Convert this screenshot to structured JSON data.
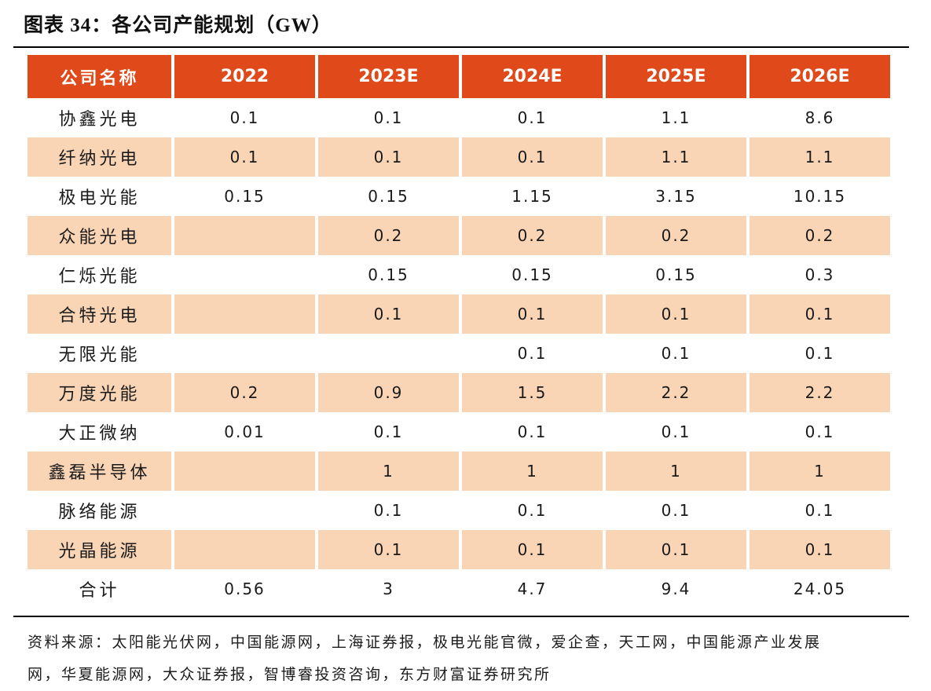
{
  "title": "图表 34：各公司产能规划（GW）",
  "table": {
    "columns": [
      "公司名称",
      "2022",
      "2023E",
      "2024E",
      "2025E",
      "2026E"
    ],
    "rows": [
      {
        "name": "协鑫光电",
        "values": [
          "0.1",
          "0.1",
          "0.1",
          "1.1",
          "8.6"
        ]
      },
      {
        "name": "纤纳光电",
        "values": [
          "0.1",
          "0.1",
          "0.1",
          "1.1",
          "1.1"
        ]
      },
      {
        "name": "极电光能",
        "values": [
          "0.15",
          "0.15",
          "1.15",
          "3.15",
          "10.15"
        ]
      },
      {
        "name": "众能光电",
        "values": [
          "",
          "0.2",
          "0.2",
          "0.2",
          "0.2"
        ]
      },
      {
        "name": "仁烁光能",
        "values": [
          "",
          "0.15",
          "0.15",
          "0.15",
          "0.3"
        ]
      },
      {
        "name": "合特光电",
        "values": [
          "",
          "0.1",
          "0.1",
          "0.1",
          "0.1"
        ]
      },
      {
        "name": "无限光能",
        "values": [
          "",
          "",
          "0.1",
          "0.1",
          "0.1"
        ]
      },
      {
        "name": "万度光能",
        "values": [
          "0.2",
          "0.9",
          "1.5",
          "2.2",
          "2.2"
        ]
      },
      {
        "name": "大正微纳",
        "values": [
          "0.01",
          "0.1",
          "0.1",
          "0.1",
          "0.1"
        ]
      },
      {
        "name": "鑫磊半导体",
        "values": [
          "",
          "1",
          "1",
          "1",
          "1"
        ]
      },
      {
        "name": "脉络能源",
        "values": [
          "",
          "0.1",
          "0.1",
          "0.1",
          "0.1"
        ]
      },
      {
        "name": "光晶能源",
        "values": [
          "",
          "0.1",
          "0.1",
          "0.1",
          "0.1"
        ]
      },
      {
        "name": "合计",
        "values": [
          "0.56",
          "3",
          "4.7",
          "9.4",
          "24.05"
        ]
      }
    ]
  },
  "footer": {
    "line1": "资料来源：太阳能光伏网，中国能源网，上海证券报，极电光能官微，爱企查，天工网，中国能源产业发展",
    "line2": "网，华夏能源网，大众证券报，智博睿投资咨询，东方财富证券研究所"
  },
  "colors": {
    "header_bg": "#E04A1B",
    "row_alt_bg": "#FAD5B5",
    "rule_color": "#000000",
    "header_text": "#FFFFFF",
    "body_text": "#1A1A1A"
  }
}
